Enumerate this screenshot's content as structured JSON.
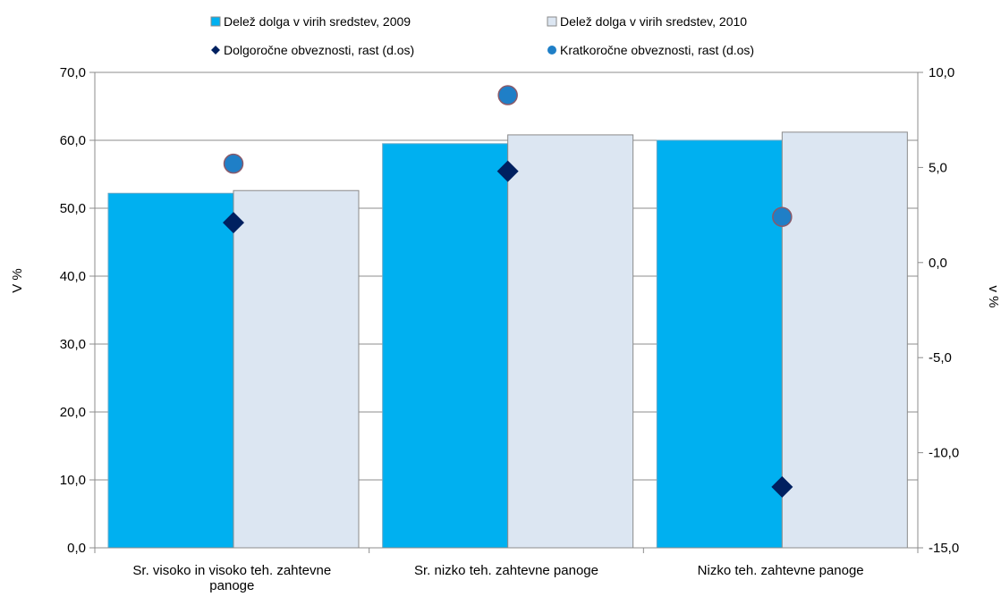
{
  "chart_data": {
    "type": "bar",
    "title": "",
    "categories": [
      [
        "Sr. visoko in visoko teh. zahtevne",
        "panoge"
      ],
      [
        "Sr. nizko teh. zahtevne panoge"
      ],
      [
        "Nizko teh. zahtevne panoge"
      ]
    ],
    "ylabel_left": "V %",
    "ylabel_right": "v %",
    "ylim_left": [
      0,
      70
    ],
    "ylim_right": [
      -15,
      10
    ],
    "left_ticks": [
      "0,0",
      "10,0",
      "20,0",
      "30,0",
      "40,0",
      "50,0",
      "60,0",
      "70,0"
    ],
    "right_ticks": [
      "-15,0",
      "-10,0",
      "-5,0",
      "0,0",
      "5,0",
      "10,0"
    ],
    "grid": true,
    "legend_position": "top",
    "series": [
      {
        "name": "Delež dolga v virih sredstev, 2009",
        "kind": "bar",
        "axis": "left",
        "color": "#00b0f0",
        "values": [
          52.2,
          59.5,
          60.0
        ]
      },
      {
        "name": "Delež dolga v virih sredstev, 2010",
        "kind": "bar",
        "axis": "left",
        "color": "#dce6f2",
        "values": [
          52.6,
          60.8,
          61.2
        ]
      },
      {
        "name": "Dolgoročne obveznosti, rast (d.os)",
        "kind": "diamond",
        "axis": "right",
        "color": "#002060",
        "values": [
          2.1,
          4.8,
          -11.8
        ]
      },
      {
        "name": "Kratkoročne obveznosti, rast (d.os)",
        "kind": "circle",
        "axis": "right",
        "color": "#1f7fc7",
        "values": [
          5.2,
          8.8,
          2.4
        ]
      }
    ]
  }
}
